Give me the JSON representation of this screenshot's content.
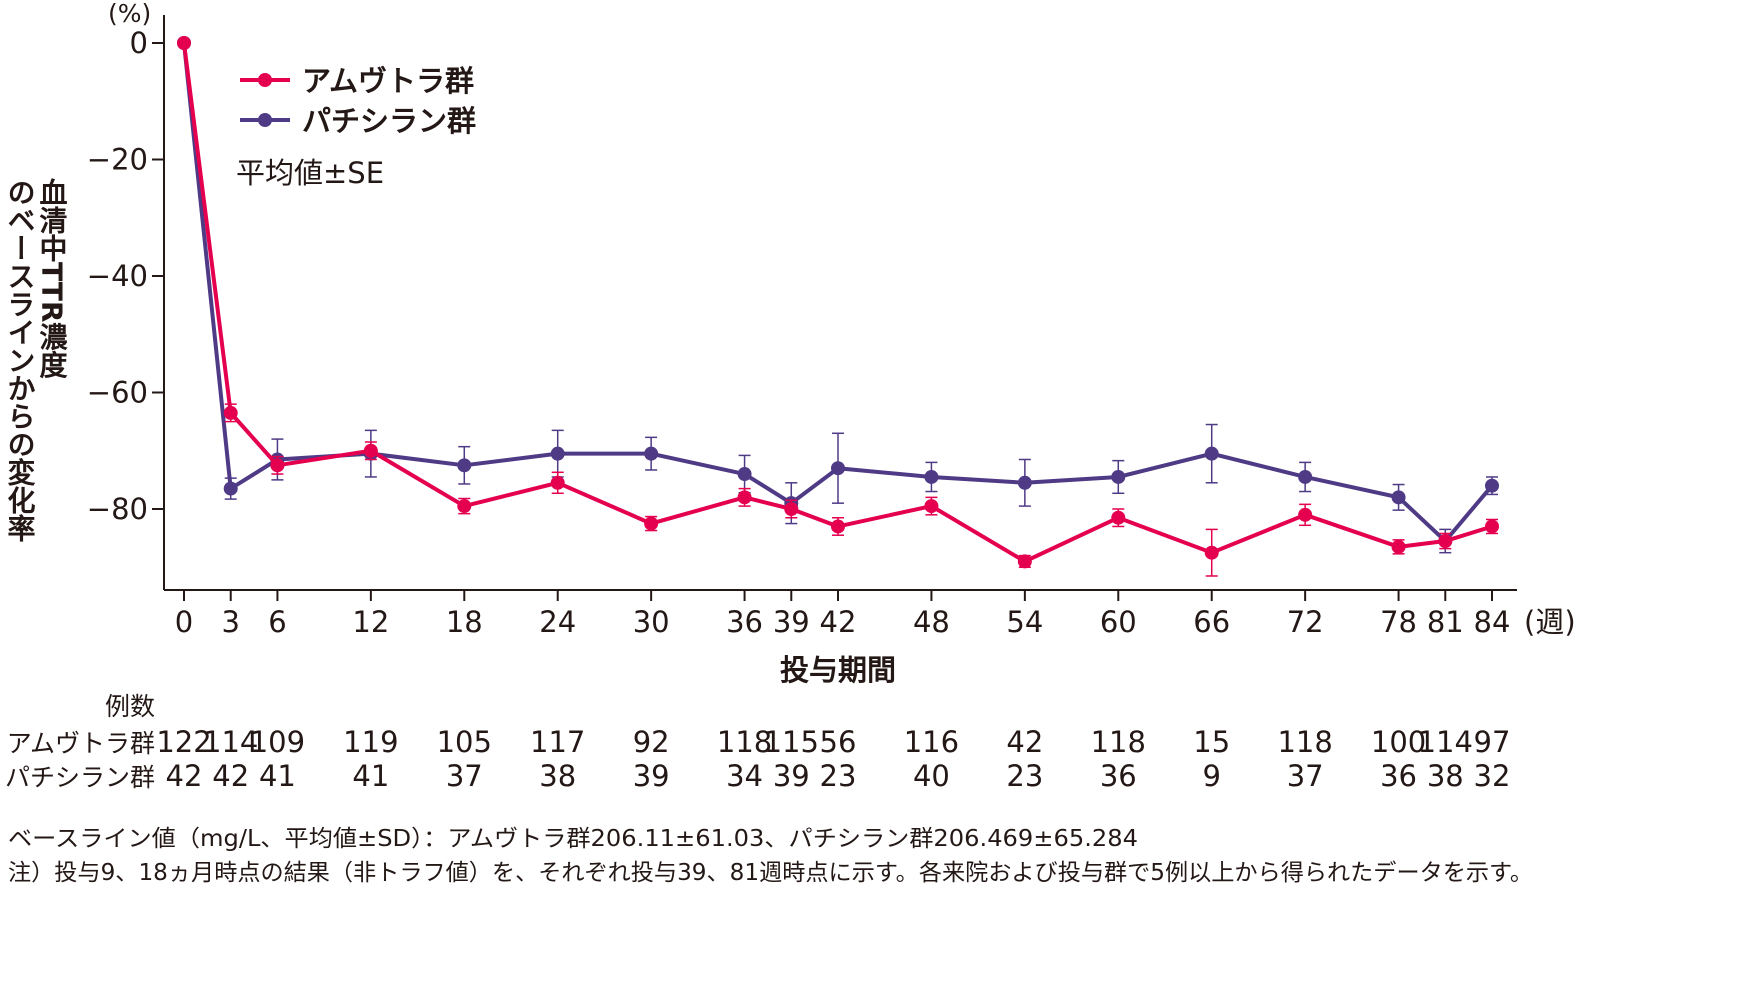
{
  "chart_data": {
    "type": "line",
    "y_unit": "(%)",
    "x_unit": "(週)",
    "ylabel": "血清中TTR濃度のベースラインからの変化率",
    "xlabel": "投与期間",
    "ylim": [
      -93,
      0
    ],
    "yticks": [
      0,
      -20,
      -40,
      -60,
      -80
    ],
    "ytick_labels": [
      "0",
      "−20",
      "−40",
      "−60",
      "−80"
    ],
    "xlim": [
      0,
      84
    ],
    "x": [
      0,
      3,
      6,
      12,
      18,
      24,
      30,
      36,
      39,
      42,
      48,
      54,
      60,
      66,
      72,
      78,
      81,
      84
    ],
    "xtick_labels": [
      "0",
      "3",
      "6",
      "12",
      "18",
      "24",
      "30",
      "36",
      "39",
      "42",
      "48",
      "54",
      "60",
      "66",
      "72",
      "78",
      "81",
      "84"
    ],
    "series": [
      {
        "name": "アムヴトラ群",
        "color": "#e4004f",
        "values": [
          0,
          -63.5,
          -72.5,
          -70.0,
          -79.5,
          -75.5,
          -82.5,
          -78.0,
          -80.0,
          -83.0,
          -79.5,
          -89.0,
          -81.5,
          -87.5,
          -81.0,
          -86.5,
          -85.5,
          -83.0
        ],
        "se": [
          0,
          1.5,
          1.5,
          1.5,
          1.3,
          1.8,
          1.2,
          1.5,
          1.5,
          1.5,
          1.5,
          1.0,
          1.5,
          4.0,
          1.8,
          1.2,
          1.3,
          1.2
        ]
      },
      {
        "name": "パチシラン群",
        "color": "#4f3a86",
        "values": [
          0,
          -76.5,
          -71.5,
          -70.5,
          -72.5,
          -70.5,
          -70.5,
          -74.0,
          -79.0,
          -73.0,
          -74.5,
          -75.5,
          -74.5,
          -70.5,
          -74.5,
          -78.0,
          -85.5,
          -76.0
        ],
        "se": [
          0,
          1.8,
          3.5,
          4.0,
          3.2,
          4.0,
          2.8,
          3.2,
          3.5,
          6.0,
          2.5,
          4.0,
          2.8,
          5.0,
          2.5,
          2.2,
          2.0,
          1.5
        ]
      }
    ],
    "legend_position": "top-left",
    "annotation": "平均値±SE",
    "counts_header": "例数",
    "counts": [
      {
        "label": "アムヴトラ群",
        "values": [
          "122",
          "114",
          "109",
          "119",
          "105",
          "117",
          "92",
          "118",
          "115",
          "56",
          "116",
          "42",
          "118",
          "15",
          "118",
          "100",
          "114",
          "97"
        ]
      },
      {
        "label": "パチシラン群",
        "values": [
          "42",
          "42",
          "41",
          "41",
          "37",
          "38",
          "39",
          "34",
          "39",
          "23",
          "40",
          "23",
          "36",
          "9",
          "37",
          "36",
          "38",
          "32"
        ]
      }
    ]
  },
  "footnotes": [
    "ベースライン値（mg/L、平均値±SD）：アムヴトラ群206.11±61.03、パチシラン群206.469±65.284",
    "注）投与9、18ヵ月時点の結果（非トラフ値）を、それぞれ投与39、81週時点に示す。各来院および投与群で5例以上から得られたデータを示す。"
  ]
}
